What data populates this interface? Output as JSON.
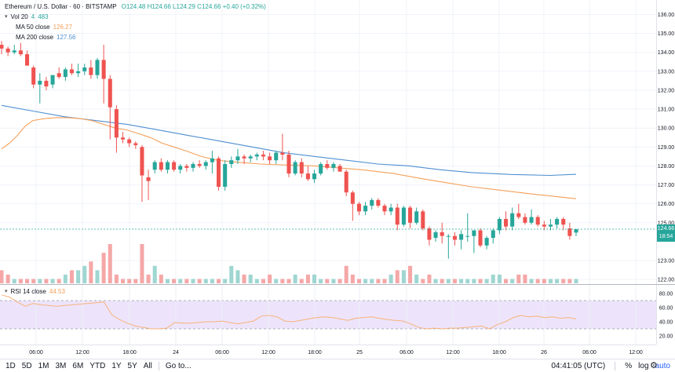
{
  "header": {
    "symbol": "Ethereum / U.S. Dollar · 60 · BITSTAMP",
    "ohlc": "O124.48 H124.66 L124.29 C124.66 +0.40 (+0.32%)"
  },
  "legend": {
    "vol": {
      "label": "Vol 20",
      "value": "4",
      "value2": "483"
    },
    "ma50": {
      "label": "MA 50 close",
      "value": "126.27"
    },
    "ma200": {
      "label": "MA 200 close",
      "value": "127.56"
    },
    "rsi": {
      "label": "RSI 14 close",
      "value": "44.53"
    }
  },
  "colors": {
    "up": "#26a69a",
    "down": "#ef5350",
    "up_vol": "#9fd6d1",
    "down_vol": "#f5a7a7",
    "ma50": "#f5a05a",
    "ma200": "#4e8fd1",
    "rsi_line": "#f7b27a",
    "rsi_band": "#ede4fb",
    "last_price_bg": "#26a69a"
  },
  "price_axis": {
    "ticks": [
      "136.00",
      "135.00",
      "134.00",
      "133.00",
      "132.00",
      "131.00",
      "130.00",
      "129.00",
      "128.00",
      "127.00",
      "126.00",
      "125.00",
      "123.00",
      "122.00"
    ],
    "last_price": "124.66",
    "countdown": "18:54"
  },
  "rsi_axis": {
    "ticks": [
      "80.00",
      "60.00",
      "40.00",
      "20.00"
    ]
  },
  "time_axis": {
    "labels": [
      "06:00",
      "12:00",
      "18:00",
      "24",
      "06:00",
      "12:00",
      "18:00",
      "25",
      "06:00",
      "12:00",
      "18:00",
      "26",
      "06:00",
      "12:00"
    ]
  },
  "bottom_bar": {
    "ranges": [
      "1D",
      "5D",
      "1M",
      "3M",
      "6M",
      "YTD",
      "1Y",
      "5Y",
      "All"
    ],
    "goto": "Go to...",
    "clock": "04:41:05 (UTC)",
    "percent": "%",
    "log": "log",
    "auto": "auto"
  },
  "chart_data": {
    "type": "candlestick",
    "x_axis": "hourly, 23 → 26 (UTC)",
    "ylim": [
      121.8,
      136.6
    ],
    "rsi_ylim": [
      10,
      90
    ],
    "candles": [
      [
        134.4,
        134.6,
        133.9,
        134.2
      ],
      [
        134.2,
        134.3,
        133.8,
        134.0
      ],
      [
        134.0,
        134.4,
        133.9,
        134.1
      ],
      [
        134.1,
        134.5,
        133.8,
        133.9
      ],
      [
        133.9,
        134.1,
        133.3,
        133.3
      ],
      [
        133.2,
        133.3,
        132.1,
        132.3
      ],
      [
        132.3,
        132.9,
        131.3,
        132.5
      ],
      [
        132.5,
        132.7,
        132.0,
        132.2
      ],
      [
        132.3,
        132.8,
        132.1,
        132.8
      ],
      [
        132.9,
        133.2,
        132.6,
        132.7
      ],
      [
        132.7,
        133.2,
        132.5,
        133.1
      ],
      [
        133.1,
        133.4,
        132.8,
        132.9
      ],
      [
        132.9,
        133.4,
        132.7,
        133.0
      ],
      [
        133.0,
        133.4,
        132.8,
        133.2
      ],
      [
        133.2,
        133.6,
        132.6,
        132.8
      ],
      [
        132.8,
        133.7,
        132.6,
        133.6
      ],
      [
        133.6,
        134.4,
        131.3,
        132.6
      ],
      [
        132.6,
        132.8,
        129.4,
        131.1
      ],
      [
        131.0,
        131.2,
        128.7,
        129.5
      ],
      [
        129.5,
        129.8,
        129.2,
        129.4
      ],
      [
        129.4,
        129.5,
        129.0,
        129.2
      ],
      [
        129.2,
        129.3,
        128.9,
        129.1
      ],
      [
        129.0,
        129.1,
        126.1,
        127.5
      ],
      [
        127.4,
        127.8,
        126.2,
        127.2
      ],
      [
        127.8,
        128.3,
        127.6,
        128.2
      ],
      [
        128.2,
        128.4,
        127.7,
        127.8
      ],
      [
        127.8,
        128.3,
        127.6,
        128.2
      ],
      [
        128.2,
        128.3,
        127.7,
        127.8
      ],
      [
        127.8,
        128.1,
        127.6,
        128.0
      ],
      [
        128.0,
        128.1,
        127.7,
        127.9
      ],
      [
        127.9,
        128.2,
        127.7,
        128.1
      ],
      [
        128.1,
        128.3,
        127.9,
        128.0
      ],
      [
        128.0,
        128.3,
        127.8,
        128.2
      ],
      [
        128.2,
        128.8,
        127.6,
        128.4
      ],
      [
        128.4,
        128.5,
        126.7,
        126.9
      ],
      [
        126.9,
        128.3,
        126.7,
        128.1
      ],
      [
        128.1,
        128.5,
        127.9,
        128.3
      ],
      [
        128.3,
        128.9,
        128.1,
        128.5
      ],
      [
        128.5,
        128.6,
        128.1,
        128.4
      ],
      [
        128.4,
        128.6,
        128.2,
        128.5
      ],
      [
        128.5,
        128.7,
        128.3,
        128.6
      ],
      [
        128.6,
        128.8,
        128.3,
        128.5
      ],
      [
        128.5,
        128.7,
        128.1,
        128.3
      ],
      [
        128.3,
        128.8,
        128.1,
        128.7
      ],
      [
        128.7,
        129.7,
        128.3,
        128.6
      ],
      [
        128.6,
        128.8,
        127.4,
        127.6
      ],
      [
        127.6,
        128.3,
        127.5,
        128.2
      ],
      [
        128.2,
        128.4,
        127.4,
        127.6
      ],
      [
        127.6,
        128.0,
        127.2,
        127.3
      ],
      [
        127.3,
        127.8,
        127.1,
        127.6
      ],
      [
        127.6,
        128.2,
        127.5,
        128.1
      ],
      [
        128.1,
        128.3,
        127.8,
        127.9
      ],
      [
        127.9,
        128.2,
        127.7,
        128.1
      ],
      [
        128.0,
        128.1,
        127.7,
        127.7
      ],
      [
        127.7,
        127.8,
        126.4,
        126.6
      ],
      [
        126.6,
        126.7,
        125.1,
        126.0
      ],
      [
        126.0,
        126.1,
        125.4,
        125.6
      ],
      [
        125.6,
        126.1,
        125.4,
        125.9
      ],
      [
        125.9,
        126.3,
        125.7,
        126.2
      ],
      [
        126.2,
        126.3,
        125.8,
        125.9
      ],
      [
        125.9,
        126.0,
        125.4,
        125.6
      ],
      [
        125.6,
        126.0,
        125.4,
        125.8
      ],
      [
        125.8,
        126.0,
        124.6,
        124.9
      ],
      [
        124.9,
        125.9,
        124.8,
        125.8
      ],
      [
        125.8,
        125.9,
        124.7,
        125.0
      ],
      [
        125.0,
        125.8,
        124.9,
        125.6
      ],
      [
        125.6,
        125.7,
        124.6,
        124.7
      ],
      [
        124.7,
        124.8,
        123.8,
        124.1
      ],
      [
        124.2,
        124.6,
        124.0,
        124.5
      ],
      [
        124.5,
        125.0,
        123.9,
        124.3
      ],
      [
        124.3,
        124.4,
        123.1,
        124.3
      ],
      [
        124.3,
        124.5,
        123.8,
        124.1
      ],
      [
        124.1,
        124.6,
        123.6,
        124.4
      ],
      [
        124.3,
        125.5,
        124.0,
        124.3
      ],
      [
        124.3,
        124.5,
        123.4,
        124.6
      ],
      [
        124.6,
        124.7,
        123.7,
        123.8
      ],
      [
        123.8,
        124.3,
        123.6,
        124.2
      ],
      [
        124.2,
        124.7,
        123.9,
        124.6
      ],
      [
        124.6,
        125.3,
        124.4,
        125.2
      ],
      [
        125.2,
        125.6,
        124.6,
        124.8
      ],
      [
        124.8,
        125.8,
        124.6,
        125.5
      ],
      [
        125.5,
        126.0,
        125.2,
        125.3
      ],
      [
        125.3,
        125.5,
        124.9,
        125.0
      ],
      [
        125.0,
        125.7,
        124.9,
        125.3
      ],
      [
        125.3,
        125.4,
        124.8,
        124.9
      ],
      [
        124.9,
        125.1,
        124.6,
        124.8
      ],
      [
        124.8,
        125.2,
        124.6,
        124.9
      ],
      [
        124.9,
        125.3,
        124.7,
        125.2
      ],
      [
        125.2,
        125.3,
        124.6,
        124.9
      ],
      [
        124.7,
        125.0,
        124.1,
        124.3
      ],
      [
        124.48,
        124.66,
        124.29,
        124.66
      ]
    ],
    "volume": [
      3,
      2,
      1,
      1,
      1,
      1,
      1,
      1,
      1,
      1,
      2,
      3,
      3,
      4,
      5,
      3,
      7,
      9,
      2,
      1,
      1,
      1,
      9,
      2,
      4,
      2,
      1,
      1,
      1,
      1,
      1,
      1,
      1,
      1,
      1,
      1,
      4,
      3,
      2,
      2,
      1,
      1,
      2,
      1,
      1,
      1,
      2,
      1,
      2,
      2,
      1,
      1,
      1,
      1,
      4,
      2,
      1,
      1,
      1,
      1,
      1,
      2,
      3,
      3,
      4,
      2,
      1,
      2,
      1,
      1,
      1,
      1,
      1,
      1,
      1,
      1,
      1,
      2,
      2,
      1,
      1,
      2,
      2,
      1,
      1,
      1,
      1,
      1,
      1,
      1,
      1
    ],
    "ma50": [
      [
        0,
        128.9
      ],
      [
        10,
        129.2
      ],
      [
        20,
        129.6
      ],
      [
        30,
        130.1
      ],
      [
        40,
        130.4
      ],
      [
        55,
        130.5
      ],
      [
        70,
        130.55
      ],
      [
        85,
        130.55
      ],
      [
        100,
        130.5
      ],
      [
        115,
        130.4
      ],
      [
        130,
        130.2
      ],
      [
        145,
        130.0
      ],
      [
        160,
        129.9
      ],
      [
        175,
        129.7
      ],
      [
        190,
        129.5
      ],
      [
        205,
        129.2
      ],
      [
        220,
        129.0
      ],
      [
        235,
        128.8
      ],
      [
        255,
        128.5
      ],
      [
        275,
        128.3
      ],
      [
        300,
        128.2
      ],
      [
        330,
        128.1
      ],
      [
        360,
        128.05
      ],
      [
        400,
        128.0
      ],
      [
        430,
        127.9
      ],
      [
        460,
        127.8
      ],
      [
        500,
        127.6
      ],
      [
        540,
        127.3
      ],
      [
        570,
        127.1
      ],
      [
        600,
        126.9
      ],
      [
        640,
        126.7
      ],
      [
        680,
        126.5
      ],
      [
        733,
        126.27
      ]
    ],
    "ma200": [
      [
        0,
        131.2
      ],
      [
        40,
        130.9
      ],
      [
        80,
        130.6
      ],
      [
        120,
        130.4
      ],
      [
        160,
        130.2
      ],
      [
        200,
        129.9
      ],
      [
        240,
        129.6
      ],
      [
        280,
        129.3
      ],
      [
        320,
        129.0
      ],
      [
        360,
        128.7
      ],
      [
        400,
        128.5
      ],
      [
        440,
        128.3
      ],
      [
        480,
        128.1
      ],
      [
        520,
        128.0
      ],
      [
        560,
        127.8
      ],
      [
        600,
        127.65
      ],
      [
        650,
        127.55
      ],
      [
        700,
        127.5
      ],
      [
        733,
        127.56
      ]
    ],
    "rsi": [
      78,
      75,
      68,
      62,
      66,
      64,
      63,
      62,
      63,
      64,
      65,
      66,
      67,
      68,
      50,
      43,
      38,
      34,
      32,
      30,
      30,
      31,
      39,
      38,
      38,
      39,
      40,
      40,
      41,
      39,
      37,
      39,
      41,
      48,
      49,
      47,
      41,
      40,
      42,
      44,
      46,
      47,
      46,
      44,
      42,
      45,
      46,
      47,
      45,
      43,
      42,
      41,
      37,
      32,
      30,
      31,
      30,
      31,
      31,
      32,
      33,
      34,
      30,
      36,
      40,
      46,
      49,
      47,
      48,
      46,
      47,
      45,
      46,
      44
    ],
    "rsi_band": [
      30,
      70
    ]
  }
}
